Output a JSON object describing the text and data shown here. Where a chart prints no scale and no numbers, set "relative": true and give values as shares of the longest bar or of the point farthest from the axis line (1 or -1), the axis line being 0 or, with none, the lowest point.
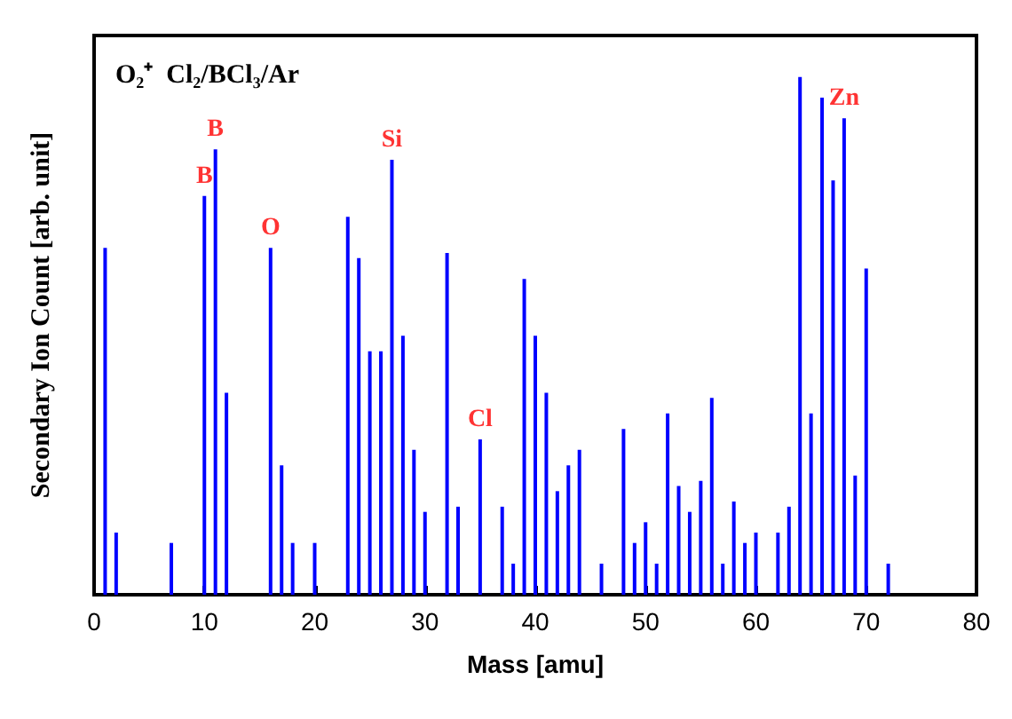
{
  "chart_data": {
    "type": "bar",
    "title": "O₂⁺  Cl₂/BCl₃/Ar",
    "xlabel": "Mass [amu]",
    "ylabel": "Secondary Ion Count [arb. unit]",
    "relative": true,
    "x": [
      1,
      2,
      7,
      10,
      11,
      12,
      16,
      17,
      18,
      20,
      23,
      24,
      25,
      26,
      27,
      28,
      29,
      30,
      32,
      33,
      35,
      37,
      38,
      39,
      40,
      41,
      42,
      43,
      44,
      46,
      48,
      49,
      50,
      51,
      52,
      53,
      54,
      55,
      56,
      57,
      58,
      59,
      60,
      62,
      63,
      64,
      65,
      66,
      67,
      68,
      69,
      70,
      72
    ],
    "series": [
      {
        "color": "#0000ff",
        "values": [
          0.67,
          0.12,
          0.1,
          0.77,
          0.86,
          0.39,
          0.67,
          0.25,
          0.1,
          0.1,
          0.73,
          0.65,
          0.47,
          0.47,
          0.84,
          0.5,
          0.28,
          0.16,
          0.66,
          0.17,
          0.3,
          0.17,
          0.06,
          0.61,
          0.5,
          0.39,
          0.2,
          0.25,
          0.28,
          0.06,
          0.32,
          0.1,
          0.14,
          0.06,
          0.35,
          0.21,
          0.16,
          0.22,
          0.38,
          0.06,
          0.18,
          0.1,
          0.12,
          0.12,
          0.17,
          1,
          0.35,
          0.96,
          0.8,
          0.92,
          0.23,
          0.63,
          0.06
        ]
      }
    ],
    "xlim": [
      0,
      80
    ],
    "xticks": [
      0,
      10,
      20,
      30,
      40,
      50,
      60,
      70,
      80
    ],
    "annotations": [
      {
        "text": "B",
        "x": 10,
        "y": 0.77
      },
      {
        "text": "B",
        "x": 11,
        "y": 0.86
      },
      {
        "text": "O",
        "x": 16,
        "y": 0.67
      },
      {
        "text": "Si",
        "x": 27,
        "y": 0.84
      },
      {
        "text": "Cl",
        "x": 35,
        "y": 0.3
      },
      {
        "text": "Zn",
        "x": 68,
        "y": 0.92
      }
    ],
    "grid": false
  }
}
